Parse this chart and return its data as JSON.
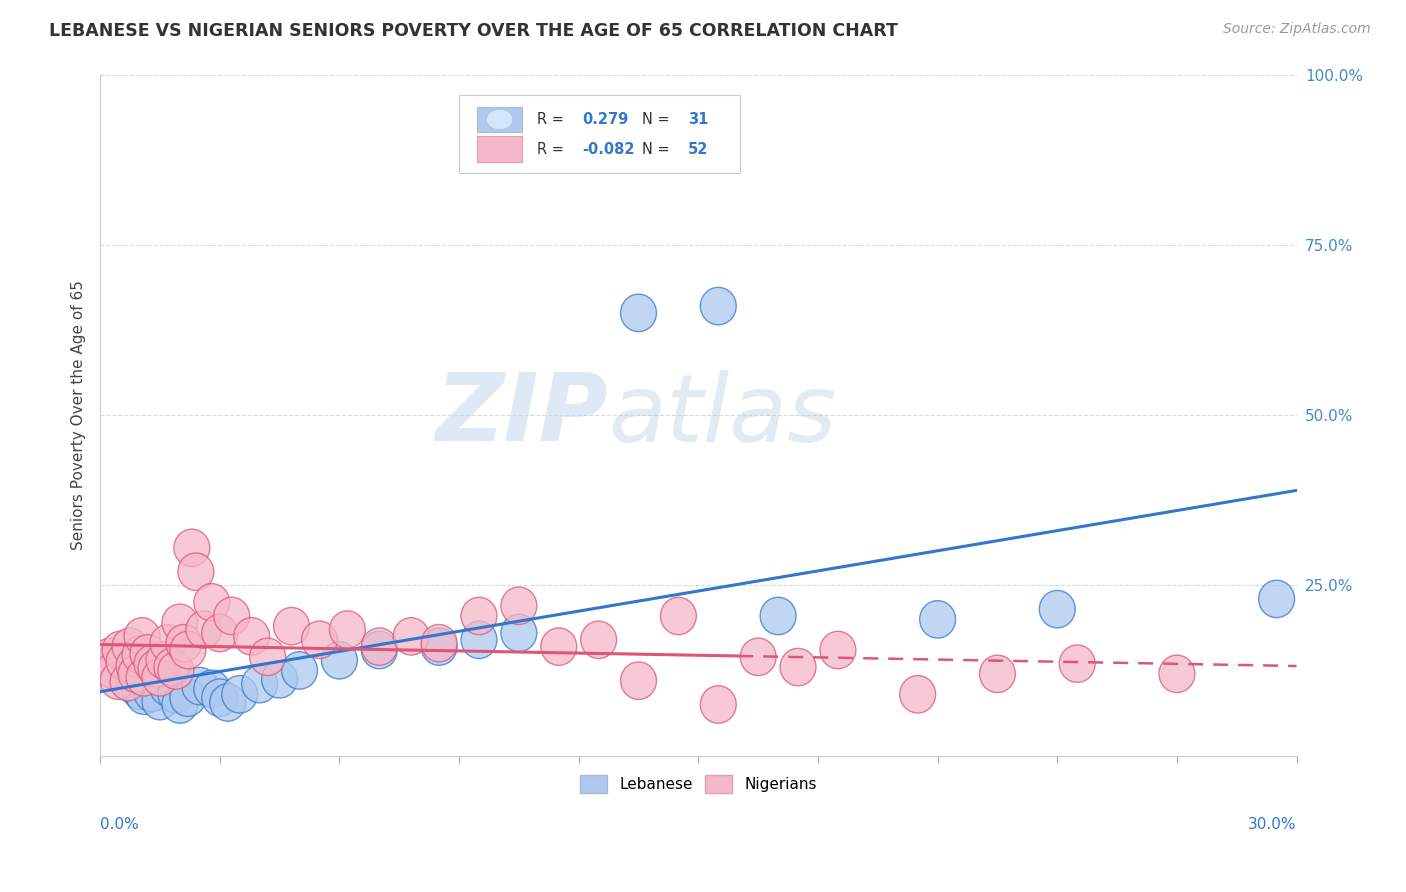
{
  "title": "LEBANESE VS NIGERIAN SENIORS POVERTY OVER THE AGE OF 65 CORRELATION CHART",
  "source": "Source: ZipAtlas.com",
  "ylabel": "Seniors Poverty Over the Age of 65",
  "xlim": [
    0.0,
    30.0
  ],
  "ylim": [
    0.0,
    100.0
  ],
  "yticks": [
    0.0,
    25.0,
    50.0,
    75.0,
    100.0
  ],
  "ytick_labels": [
    "",
    "25.0%",
    "50.0%",
    "75.0%",
    "100.0%"
  ],
  "watermark_zip": "ZIP",
  "watermark_atlas": "atlas",
  "legend_entries": [
    {
      "label": "Lebanese",
      "R": 0.279,
      "N": 31,
      "color": "#adc9ef"
    },
    {
      "label": "Nigerians",
      "R": -0.082,
      "N": 52,
      "color": "#f5b8c8"
    }
  ],
  "lebanese_points": [
    [
      0.3,
      13.5
    ],
    [
      0.5,
      12.0
    ],
    [
      0.7,
      11.0
    ],
    [
      0.8,
      10.5
    ],
    [
      1.0,
      9.5
    ],
    [
      1.1,
      8.8
    ],
    [
      1.3,
      9.2
    ],
    [
      1.5,
      8.0
    ],
    [
      1.7,
      10.0
    ],
    [
      1.9,
      9.0
    ],
    [
      2.0,
      7.5
    ],
    [
      2.2,
      8.5
    ],
    [
      2.5,
      10.2
    ],
    [
      2.8,
      9.8
    ],
    [
      3.0,
      8.5
    ],
    [
      3.2,
      7.8
    ],
    [
      3.5,
      9.0
    ],
    [
      4.0,
      10.5
    ],
    [
      4.5,
      11.2
    ],
    [
      5.0,
      12.5
    ],
    [
      6.0,
      14.0
    ],
    [
      7.0,
      15.5
    ],
    [
      8.5,
      16.0
    ],
    [
      9.5,
      17.0
    ],
    [
      10.5,
      18.0
    ],
    [
      13.5,
      65.0
    ],
    [
      15.5,
      66.0
    ],
    [
      17.0,
      20.5
    ],
    [
      21.0,
      20.0
    ],
    [
      24.0,
      21.5
    ],
    [
      29.5,
      23.0
    ]
  ],
  "nigerian_points": [
    [
      0.15,
      13.0
    ],
    [
      0.25,
      14.5
    ],
    [
      0.35,
      12.5
    ],
    [
      0.45,
      11.0
    ],
    [
      0.5,
      15.5
    ],
    [
      0.6,
      13.8
    ],
    [
      0.7,
      10.8
    ],
    [
      0.75,
      16.0
    ],
    [
      0.85,
      13.2
    ],
    [
      0.9,
      12.0
    ],
    [
      1.0,
      14.8
    ],
    [
      1.05,
      17.5
    ],
    [
      1.1,
      11.5
    ],
    [
      1.2,
      15.0
    ],
    [
      1.3,
      13.5
    ],
    [
      1.4,
      12.8
    ],
    [
      1.5,
      11.5
    ],
    [
      1.6,
      14.0
    ],
    [
      1.7,
      16.5
    ],
    [
      1.8,
      13.0
    ],
    [
      1.9,
      12.5
    ],
    [
      2.0,
      19.5
    ],
    [
      2.1,
      16.5
    ],
    [
      2.2,
      15.5
    ],
    [
      2.3,
      30.5
    ],
    [
      2.4,
      27.0
    ],
    [
      2.6,
      18.5
    ],
    [
      2.8,
      22.5
    ],
    [
      3.0,
      18.0
    ],
    [
      3.3,
      20.5
    ],
    [
      3.8,
      17.5
    ],
    [
      4.2,
      14.5
    ],
    [
      4.8,
      19.0
    ],
    [
      5.5,
      17.0
    ],
    [
      6.2,
      18.5
    ],
    [
      7.0,
      16.0
    ],
    [
      7.8,
      17.5
    ],
    [
      8.5,
      16.5
    ],
    [
      9.5,
      20.5
    ],
    [
      10.5,
      22.0
    ],
    [
      11.5,
      16.0
    ],
    [
      12.5,
      17.0
    ],
    [
      13.5,
      11.0
    ],
    [
      14.5,
      20.5
    ],
    [
      15.5,
      7.5
    ],
    [
      16.5,
      14.5
    ],
    [
      17.5,
      13.0
    ],
    [
      18.5,
      15.5
    ],
    [
      20.5,
      9.0
    ],
    [
      22.5,
      12.0
    ],
    [
      24.5,
      13.5
    ],
    [
      27.0,
      12.0
    ]
  ],
  "background_color": "#ffffff",
  "grid_color": "#d0dde8",
  "lebanese_line_color": "#3377cc",
  "nigerian_line_color": "#dd5577",
  "leb_face_color": "#adc9ef",
  "nig_face_color": "#f5b8c8",
  "title_fontsize": 12.5,
  "axis_label_fontsize": 11,
  "tick_fontsize": 11,
  "source_fontsize": 10
}
